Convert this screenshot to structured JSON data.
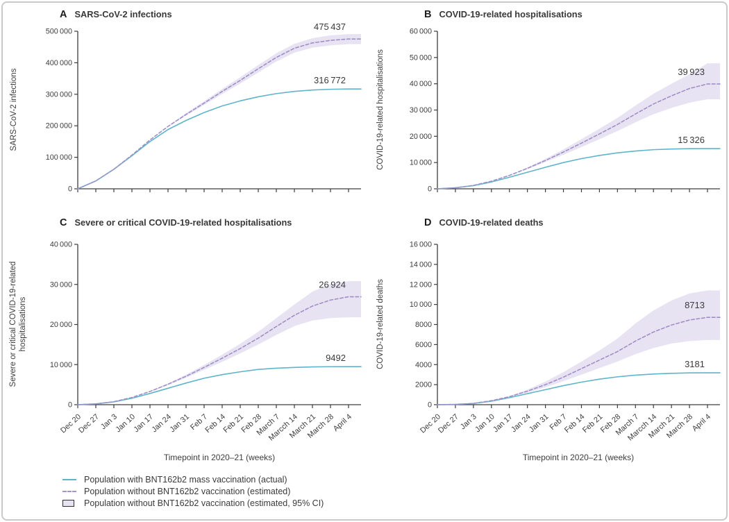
{
  "figure": {
    "x_axis_title": "Timepoint in 2020–21 (weeks)",
    "x_labels": [
      "Dec 20",
      "Dec 27",
      "Jan 3",
      "Jan 10",
      "Jan 17",
      "Jan 24",
      "Jan 31",
      "Feb 7",
      "Feb 14",
      "Feb 21",
      "Feb 28",
      "March 7",
      "Marcch 14",
      "March 21",
      "March 28",
      "April 4"
    ],
    "legend": [
      {
        "swatch": "solid-line",
        "color": "#5fb4ca",
        "label": "Population with BNT162b2 mass vaccination (actual)"
      },
      {
        "swatch": "dashed-line",
        "color": "#9e90c6",
        "label": "Population without BNT162b2 vaccination (estimated)"
      },
      {
        "swatch": "ci-box",
        "color": "#e7e3f2",
        "label": "Population without BNT162b2 vaccination (estimated, 95% CI)"
      }
    ],
    "colors": {
      "actual_line": "#5fb4ca",
      "estimated_line": "#9e90c6",
      "ci_band": "#e7e3f2",
      "axis": "#3c3c3c",
      "text": "#3d3d3d"
    }
  },
  "chart_data": [
    {
      "type": "line",
      "panel": "A",
      "title": "SARS-CoV-2 infections",
      "ylabel_lines": [
        "SARS-CoV-2 infections"
      ],
      "ylim": [
        0,
        500000
      ],
      "yticks": [
        0,
        100000,
        200000,
        300000,
        400000,
        500000
      ],
      "series": [
        {
          "name": "Population with BNT162b2 mass vaccination (actual)",
          "style": "solid",
          "end_label": "316 772",
          "values": [
            0,
            25000,
            62000,
            105000,
            150000,
            188000,
            217000,
            242000,
            263000,
            279000,
            292000,
            302000,
            309000,
            313500,
            315800,
            316772
          ]
        },
        {
          "name": "Population without BNT162b2 vaccination (estimated)",
          "style": "dashed",
          "end_label": "475 437",
          "values": [
            0,
            25000,
            62000,
            107000,
            155000,
            198000,
            236000,
            272000,
            309000,
            344000,
            381000,
            417000,
            446000,
            463000,
            471000,
            475437
          ]
        }
      ],
      "ci": {
        "lower": [
          0,
          25000,
          62000,
          107000,
          155000,
          198000,
          232000,
          266000,
          301000,
          334000,
          369000,
          404000,
          432000,
          448000,
          455000,
          459000
        ],
        "upper": [
          0,
          25000,
          62000,
          107000,
          155000,
          198000,
          240000,
          278000,
          317000,
          354000,
          393000,
          430000,
          460000,
          478000,
          487000,
          491000
        ]
      }
    },
    {
      "type": "line",
      "panel": "B",
      "title": "COVID-19-related hospitalisations",
      "ylabel_lines": [
        "COVID-19-related hospitalisations"
      ],
      "ylim": [
        0,
        60000
      ],
      "yticks": [
        0,
        10000,
        20000,
        30000,
        40000,
        50000,
        60000
      ],
      "series": [
        {
          "name": "Population with BNT162b2 mass vaccination (actual)",
          "style": "solid",
          "end_label": "15 326",
          "values": [
            0,
            400,
            1200,
            2600,
            4400,
            6300,
            8200,
            10000,
            11500,
            12700,
            13700,
            14400,
            14900,
            15150,
            15280,
            15326
          ]
        },
        {
          "name": "Population without BNT162b2 vaccination (estimated)",
          "style": "dashed",
          "end_label": "39 923",
          "values": [
            0,
            400,
            1300,
            2900,
            5100,
            7800,
            10800,
            14000,
            17400,
            20900,
            24500,
            28500,
            32300,
            35400,
            38200,
            39923
          ]
        }
      ],
      "ci": {
        "lower": [
          0,
          400,
          1300,
          2900,
          5000,
          7500,
          10200,
          13000,
          15900,
          18900,
          22000,
          25300,
          28400,
          30800,
          32800,
          34100
        ],
        "upper": [
          0,
          400,
          1300,
          2900,
          5200,
          8100,
          11400,
          15000,
          18900,
          22900,
          27000,
          31700,
          36200,
          40000,
          43600,
          47800
        ]
      }
    },
    {
      "type": "line",
      "panel": "C",
      "title": "Severe or critical COVID-19-related hospitalisations",
      "ylabel_lines": [
        "Severe or critical COVID-19-related",
        "hospitalisations"
      ],
      "ylim": [
        0,
        40000
      ],
      "yticks": [
        0,
        10000,
        20000,
        30000,
        40000
      ],
      "series": [
        {
          "name": "Population with BNT162b2 mass vaccination (actual)",
          "style": "solid",
          "end_label": "9492",
          "values": [
            0,
            200,
            700,
            1600,
            2800,
            4100,
            5400,
            6600,
            7500,
            8200,
            8800,
            9100,
            9300,
            9420,
            9480,
            9492
          ]
        },
        {
          "name": "Population without BNT162b2 vaccination (estimated)",
          "style": "dashed",
          "end_label": "26 924",
          "values": [
            0,
            200,
            750,
            1800,
            3300,
            5100,
            7100,
            9300,
            11600,
            14000,
            16600,
            19500,
            22300,
            24600,
            26100,
            26924
          ]
        }
      ],
      "ci": {
        "lower": [
          0,
          200,
          750,
          1800,
          3200,
          4900,
          6700,
          8700,
          10700,
          12800,
          15000,
          17400,
          19600,
          21000,
          21600,
          21800
        ],
        "upper": [
          0,
          200,
          750,
          1800,
          3400,
          5300,
          7500,
          9900,
          12500,
          15200,
          18200,
          21600,
          25000,
          28200,
          30100,
          30800
        ]
      }
    },
    {
      "type": "line",
      "panel": "D",
      "title": "COVID-19-related deaths",
      "ylabel_lines": [
        "COVID-19-related deaths"
      ],
      "ylim": [
        0,
        16000
      ],
      "yticks": [
        0,
        2000,
        4000,
        6000,
        8000,
        10000,
        12000,
        14000,
        16000
      ],
      "series": [
        {
          "name": "Population with BNT162b2 mass vaccination (actual)",
          "style": "solid",
          "end_label": "3181",
          "values": [
            0,
            30,
            120,
            350,
            700,
            1100,
            1500,
            1900,
            2250,
            2550,
            2780,
            2950,
            3060,
            3130,
            3170,
            3181
          ]
        },
        {
          "name": "Population without BNT162b2 vaccination (estimated)",
          "style": "dashed",
          "end_label": "8713",
          "values": [
            0,
            30,
            130,
            400,
            800,
            1350,
            2000,
            2750,
            3600,
            4450,
            5300,
            6350,
            7250,
            7950,
            8450,
            8713
          ]
        }
      ],
      "ci": {
        "lower": [
          0,
          30,
          130,
          400,
          750,
          1200,
          1750,
          2350,
          3000,
          3650,
          4300,
          5050,
          5650,
          6100,
          6350,
          6450
        ],
        "upper": [
          0,
          30,
          130,
          400,
          850,
          1500,
          2300,
          3250,
          4300,
          5400,
          6600,
          8100,
          9400,
          10400,
          11100,
          11400
        ]
      }
    }
  ]
}
